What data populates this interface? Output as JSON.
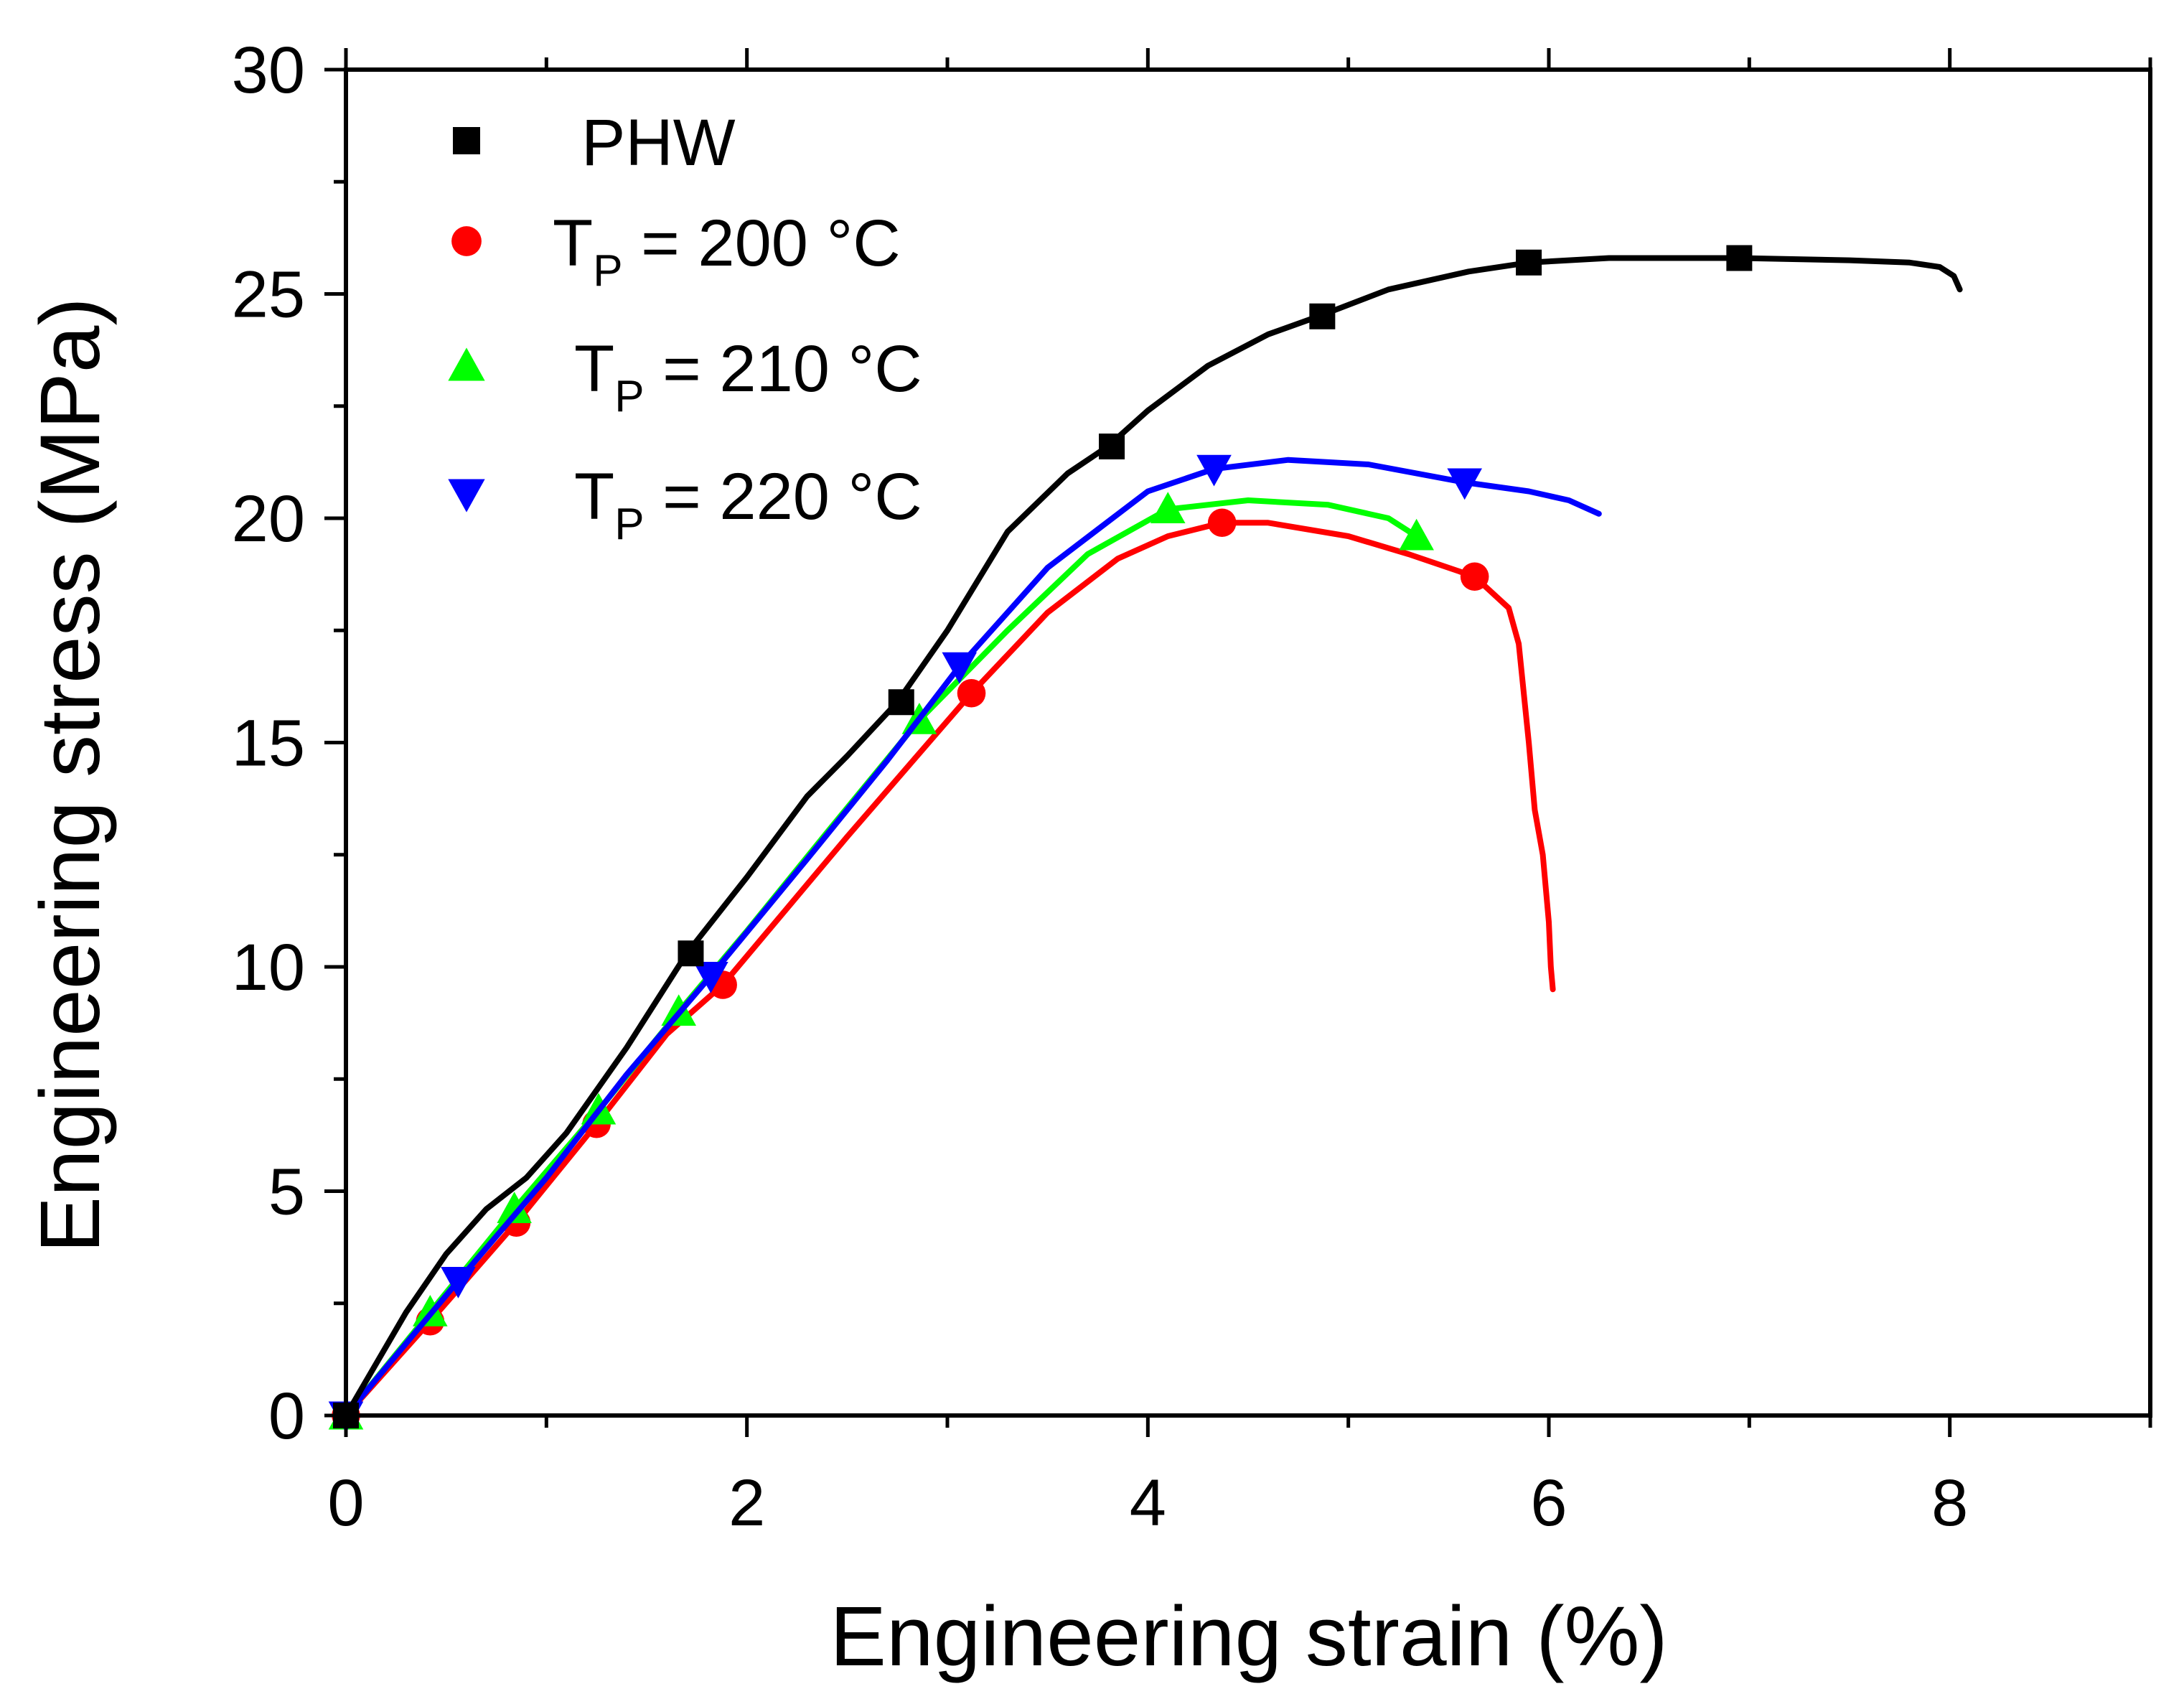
{
  "chart_data": {
    "type": "line",
    "xlabel": "Engineering strain (%)",
    "ylabel": "Engineering stress (MPa)",
    "xlim": [
      0,
      9
    ],
    "ylim": [
      0,
      30
    ],
    "x_ticks": [
      0,
      2,
      4,
      6,
      8
    ],
    "y_ticks": [
      0,
      5,
      10,
      15,
      20,
      25,
      30
    ],
    "legend_position": "top-left",
    "series": [
      {
        "name": "PHW",
        "label": "PHW",
        "marker": "square",
        "color": "#000000",
        "x": [
          0,
          0.3,
          0.5,
          0.7,
          0.9,
          1.1,
          1.4,
          1.7,
          2.0,
          2.3,
          2.5,
          2.75,
          3.0,
          3.3,
          3.6,
          3.8,
          4.0,
          4.3,
          4.6,
          4.85,
          5.2,
          5.6,
          5.9,
          6.3,
          6.95,
          7.5,
          7.8,
          7.95,
          8.02,
          8.05
        ],
        "y": [
          0,
          2.3,
          3.6,
          4.6,
          5.3,
          6.3,
          8.2,
          10.3,
          12.0,
          13.8,
          14.7,
          15.9,
          17.5,
          19.7,
          21.0,
          21.6,
          22.4,
          23.4,
          24.1,
          24.5,
          25.1,
          25.5,
          25.7,
          25.8,
          25.8,
          25.75,
          25.7,
          25.6,
          25.4,
          25.1
        ],
        "markers_x": [
          0,
          1.72,
          2.77,
          3.82,
          4.87,
          5.9,
          6.95
        ],
        "markers_y": [
          0,
          10.3,
          15.9,
          21.6,
          24.5,
          25.7,
          25.8
        ]
      },
      {
        "name": "TP = 200 °C",
        "label_main": "T",
        "label_sub": "P",
        "label_rest": " = 200 °C",
        "marker": "circle",
        "color": "#ff0000",
        "x": [
          0,
          0.42,
          0.85,
          1.25,
          1.6,
          1.88,
          2.5,
          3.12,
          3.5,
          3.85,
          4.1,
          4.37,
          4.6,
          5.0,
          5.3,
          5.63,
          5.8,
          5.85,
          5.9,
          5.93,
          5.97,
          6.0,
          6.01,
          6.02
        ],
        "y": [
          0,
          2.1,
          4.3,
          6.5,
          8.5,
          9.6,
          12.9,
          16.1,
          17.9,
          19.1,
          19.6,
          19.9,
          19.9,
          19.6,
          19.2,
          18.7,
          18.0,
          17.2,
          15.0,
          13.5,
          12.5,
          11.0,
          10.0,
          9.5
        ],
        "markers_x": [
          0,
          0.42,
          0.85,
          1.25,
          1.88,
          3.12,
          4.37,
          5.63
        ],
        "markers_y": [
          0,
          2.1,
          4.3,
          6.5,
          9.6,
          16.1,
          19.9,
          18.7
        ]
      },
      {
        "name": "TP = 210 °C",
        "label_main": "T",
        "label_sub": "P",
        "label_rest": " = 210 °C",
        "marker": "triangle-up",
        "color": "#00ff00",
        "x": [
          0,
          0.42,
          0.84,
          1.26,
          1.66,
          2.0,
          2.4,
          2.86,
          3.3,
          3.7,
          4.1,
          4.5,
          4.9,
          5.2,
          5.34
        ],
        "y": [
          0,
          2.3,
          4.6,
          6.8,
          9.0,
          10.8,
          13.0,
          15.5,
          17.5,
          19.2,
          20.2,
          20.4,
          20.3,
          20.0,
          19.6
        ],
        "markers_x": [
          0,
          0.42,
          0.84,
          1.26,
          1.66,
          2.86,
          4.1,
          5.34
        ],
        "markers_y": [
          0,
          2.3,
          4.6,
          6.8,
          9.0,
          15.5,
          20.2,
          19.6
        ]
      },
      {
        "name": "TP = 220 °C",
        "label_main": "T",
        "label_sub": "P",
        "label_rest": " = 220 °C",
        "marker": "triangle-down",
        "color": "#0000ff",
        "x": [
          0,
          0.56,
          1.0,
          1.4,
          1.82,
          2.3,
          2.7,
          3.06,
          3.5,
          4.0,
          4.33,
          4.7,
          5.1,
          5.58,
          5.9,
          6.1,
          6.25
        ],
        "y": [
          0,
          3.0,
          5.3,
          7.6,
          9.8,
          12.4,
          14.6,
          16.7,
          18.9,
          20.6,
          21.1,
          21.3,
          21.2,
          20.8,
          20.6,
          20.4,
          20.1
        ],
        "markers_x": [
          0,
          0.56,
          1.82,
          3.06,
          4.33,
          5.58
        ],
        "markers_y": [
          0,
          3.0,
          9.8,
          16.7,
          21.1,
          20.8
        ]
      }
    ]
  }
}
